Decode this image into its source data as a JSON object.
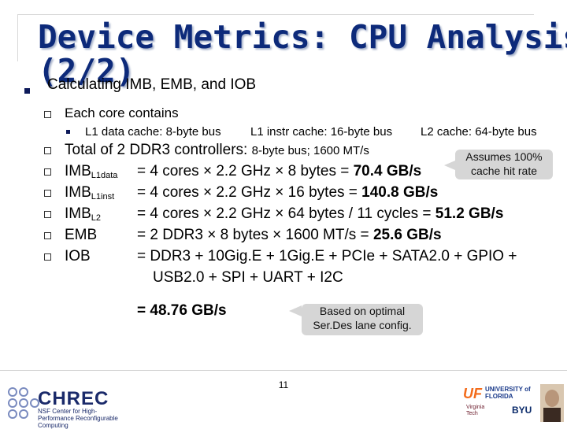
{
  "title": {
    "line1": "Device Metrics: CPU Analysis",
    "line2": "(2/2)"
  },
  "main_bullet": "Calculating IMB, EMB, and IOB",
  "core": {
    "heading": "Each core contains",
    "items": [
      "L1 data cache: 8-byte bus",
      "L1 instr cache: 16-byte bus",
      "L2 cache: 64-byte bus"
    ]
  },
  "ddr": {
    "label": "Total of 2 DDR3 controllers:",
    "detail": "8-byte bus; 1600 MT/s"
  },
  "rows": [
    {
      "name": "IMB",
      "sub": "L1data",
      "expr": "= 4 cores × 2.2 GHz × 8 bytes  = ",
      "result": "70.4 GB/s"
    },
    {
      "name": "IMB",
      "sub": "L1inst",
      "expr": "= 4 cores × 2.2 GHz × 16 bytes = ",
      "result": "140.8 GB/s"
    },
    {
      "name": "IMB",
      "sub": "L2",
      "expr": "= 4 cores × 2.2 GHz × 64 bytes / 11 cycles = ",
      "result": "51.2 GB/s"
    },
    {
      "name": "EMB",
      "sub": "",
      "expr": "= 2 DDR3 × 8 bytes × 1600 MT/s = ",
      "result": "25.6 GB/s"
    },
    {
      "name": "IOB",
      "sub": "",
      "expr": "= DDR3 + 10Gig.E + 1Gig.E + PCIe + SATA2.0 + GPIO +",
      "result": ""
    }
  ],
  "iob_cont": "USB2.0 + SPI + UART + I2C",
  "iob_total": "= 48.76 GB/s",
  "callout1": {
    "line1": "Assumes 100%",
    "line2": "cache hit rate"
  },
  "callout2": {
    "line1": "Based on optimal",
    "line2": "Ser.Des lane config."
  },
  "page_number": "11",
  "footer": {
    "chrec_name": "CHREC",
    "chrec_sub": "NSF Center for High-Performance Reconfigurable Computing",
    "uf": "UF",
    "uf_name": "UNIVERSITY of FLORIDA",
    "byu": "BYU",
    "vt": "Virginia Tech"
  }
}
